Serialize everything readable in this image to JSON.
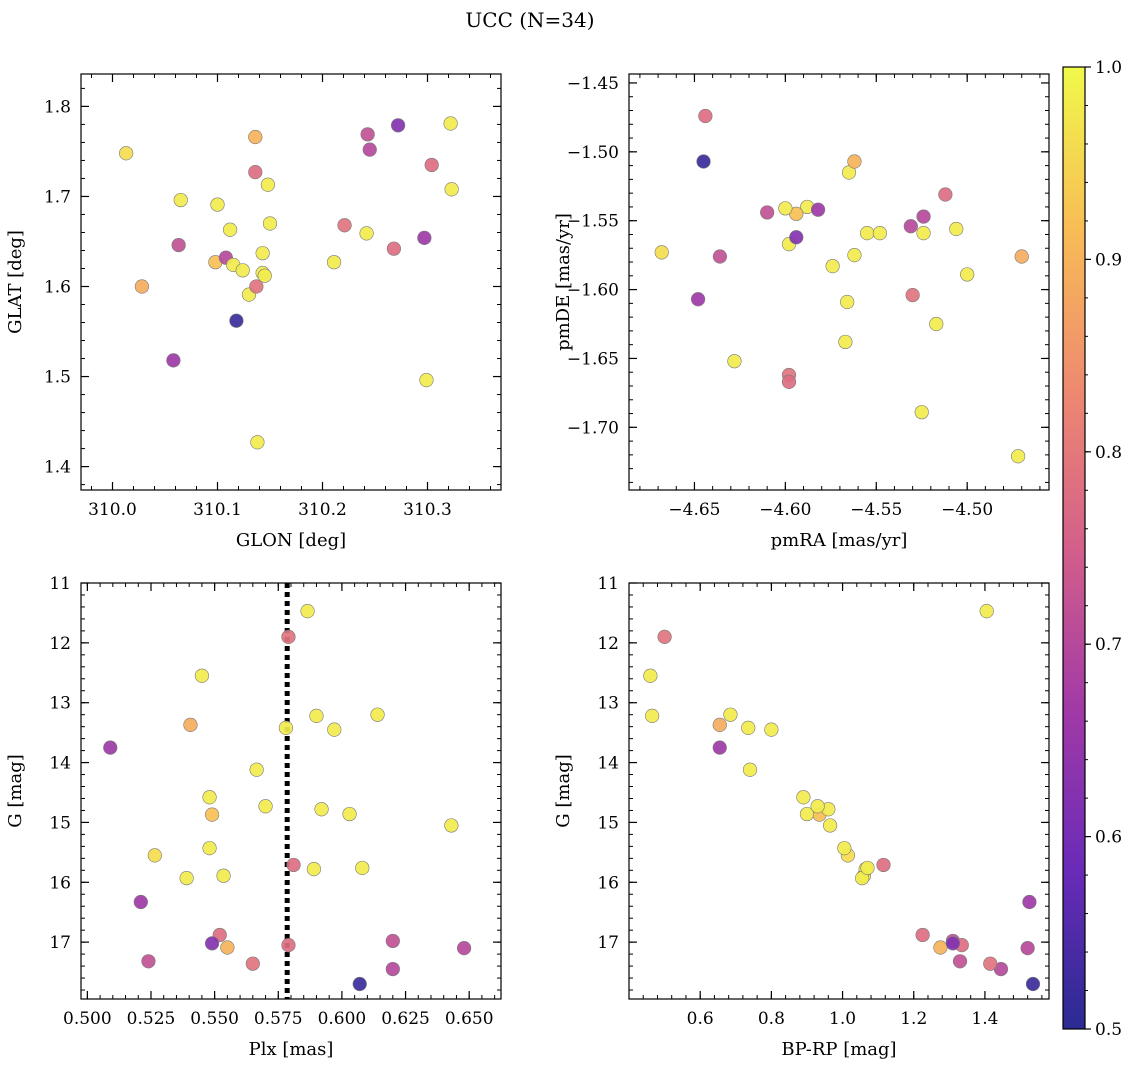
{
  "chart_data": {
    "type": "scatter",
    "title": "UCC (N=34)",
    "colormap": {
      "name": "plasma",
      "range": [
        0.5,
        1.0
      ],
      "ticks": [
        "0.5",
        "0.6",
        "0.7",
        "0.8",
        "0.9",
        "1.0"
      ],
      "stops": [
        "#2a2b92",
        "#6a2bb8",
        "#a23aa6",
        "#d35f8a",
        "#ee8a70",
        "#f8bd55",
        "#f0f94a"
      ]
    },
    "stars": [
      {
        "glon": 310.013,
        "glat": 1.748,
        "pmra": -4.668,
        "pmde": -1.573,
        "plx": 0.5265,
        "g": 15.55,
        "bprp": 1.015,
        "p": 0.96
      },
      {
        "glon": 310.028,
        "glat": 1.6,
        "pmra": -4.47,
        "pmde": -1.576,
        "plx": 0.5405,
        "g": 13.37,
        "bprp": 0.655,
        "p": 0.89
      },
      {
        "glon": 310.058,
        "glat": 1.518,
        "pmra": -4.648,
        "pmde": -1.607,
        "plx": 0.509,
        "g": 13.75,
        "bprp": 0.655,
        "p": 0.66
      },
      {
        "glon": 310.063,
        "glat": 1.646,
        "pmra": -4.61,
        "pmde": -1.544,
        "plx": 0.62,
        "g": 16.98,
        "bprp": 1.31,
        "p": 0.72
      },
      {
        "glon": 310.065,
        "glat": 1.696,
        "pmra": -4.565,
        "pmde": -1.515,
        "plx": 0.548,
        "g": 14.58,
        "bprp": 0.89,
        "p": 0.98
      },
      {
        "glon": 310.1,
        "glat": 1.691,
        "pmra": -4.588,
        "pmde": -1.54,
        "plx": 0.548,
        "g": 15.43,
        "bprp": 1.005,
        "p": 0.98
      },
      {
        "glon": 310.098,
        "glat": 1.627,
        "pmra": -4.594,
        "pmde": -1.545,
        "plx": 0.549,
        "g": 14.87,
        "bprp": 0.935,
        "p": 0.92
      },
      {
        "glon": 310.108,
        "glat": 1.632,
        "pmra": -4.531,
        "pmde": -1.554,
        "plx": 0.62,
        "g": 17.45,
        "bprp": 1.445,
        "p": 0.7
      },
      {
        "glon": 310.112,
        "glat": 1.663,
        "pmra": -4.555,
        "pmde": -1.559,
        "plx": 0.5665,
        "g": 14.12,
        "bprp": 0.74,
        "p": 0.98
      },
      {
        "glon": 310.115,
        "glat": 1.624,
        "pmra": -4.6,
        "pmde": -1.541,
        "plx": 0.5535,
        "g": 15.89,
        "bprp": 1.06,
        "p": 0.98
      },
      {
        "glon": 310.118,
        "glat": 1.562,
        "pmra": -4.645,
        "pmde": -1.507,
        "plx": 0.607,
        "g": 17.7,
        "bprp": 1.535,
        "p": 0.52
      },
      {
        "glon": 310.124,
        "glat": 1.618,
        "pmra": -4.562,
        "pmde": -1.575,
        "plx": 0.592,
        "g": 14.78,
        "bprp": 0.96,
        "p": 0.98
      },
      {
        "glon": 310.13,
        "glat": 1.591,
        "pmra": -4.524,
        "pmde": -1.559,
        "plx": 0.603,
        "g": 14.86,
        "bprp": 0.9,
        "p": 0.98
      },
      {
        "glon": 310.136,
        "glat": 1.766,
        "pmra": -4.562,
        "pmde": -1.507,
        "plx": 0.555,
        "g": 17.09,
        "bprp": 1.275,
        "p": 0.9
      },
      {
        "glon": 310.136,
        "glat": 1.727,
        "pmra": -4.512,
        "pmde": -1.531,
        "plx": 0.552,
        "g": 16.88,
        "bprp": 1.225,
        "p": 0.78
      },
      {
        "glon": 310.137,
        "glat": 1.6,
        "pmra": -4.53,
        "pmde": -1.604,
        "plx": 0.565,
        "g": 17.36,
        "bprp": 1.415,
        "p": 0.79
      },
      {
        "glon": 310.138,
        "glat": 1.427,
        "pmra": -4.598,
        "pmde": -1.567,
        "plx": 0.578,
        "g": 13.42,
        "bprp": 0.735,
        "p": 0.98
      },
      {
        "glon": 310.143,
        "glat": 1.637,
        "pmra": -4.574,
        "pmde": -1.583,
        "plx": 0.589,
        "g": 15.78,
        "bprp": 1.065,
        "p": 0.98
      },
      {
        "glon": 310.143,
        "glat": 1.615,
        "pmra": -4.506,
        "pmde": -1.556,
        "plx": 0.539,
        "g": 15.93,
        "bprp": 1.055,
        "p": 0.98
      },
      {
        "glon": 310.145,
        "glat": 1.612,
        "pmra": -4.566,
        "pmde": -1.609,
        "plx": 0.57,
        "g": 14.73,
        "bprp": 0.93,
        "p": 0.98
      },
      {
        "glon": 310.148,
        "glat": 1.713,
        "pmra": -4.567,
        "pmde": -1.638,
        "plx": 0.597,
        "g": 13.45,
        "bprp": 0.8,
        "p": 0.98
      },
      {
        "glon": 310.15,
        "glat": 1.67,
        "pmra": -4.548,
        "pmde": -1.559,
        "plx": 0.608,
        "g": 15.76,
        "bprp": 1.07,
        "p": 0.98
      },
      {
        "glon": 310.211,
        "glat": 1.627,
        "pmra": -4.517,
        "pmde": -1.625,
        "plx": 0.545,
        "g": 12.55,
        "bprp": 0.46,
        "p": 0.98
      },
      {
        "glon": 310.221,
        "glat": 1.668,
        "pmra": -4.598,
        "pmde": -1.662,
        "plx": 0.579,
        "g": 11.9,
        "bprp": 0.5,
        "p": 0.79
      },
      {
        "glon": 310.242,
        "glat": 1.659,
        "pmra": -4.628,
        "pmde": -1.652,
        "plx": 0.59,
        "g": 13.22,
        "bprp": 0.465,
        "p": 0.98
      },
      {
        "glon": 310.243,
        "glat": 1.769,
        "pmra": -4.636,
        "pmde": -1.576,
        "plx": 0.524,
        "g": 17.32,
        "bprp": 1.33,
        "p": 0.72
      },
      {
        "glon": 310.245,
        "glat": 1.752,
        "pmra": -4.524,
        "pmde": -1.547,
        "plx": 0.648,
        "g": 17.1,
        "bprp": 1.52,
        "p": 0.7
      },
      {
        "glon": 310.268,
        "glat": 1.642,
        "pmra": -4.598,
        "pmde": -1.667,
        "plx": 0.579,
        "g": 17.05,
        "bprp": 1.335,
        "p": 0.78
      },
      {
        "glon": 310.272,
        "glat": 1.779,
        "pmra": -4.594,
        "pmde": -1.562,
        "plx": 0.549,
        "g": 17.02,
        "bprp": 1.31,
        "p": 0.62
      },
      {
        "glon": 310.297,
        "glat": 1.654,
        "pmra": -4.582,
        "pmde": -1.542,
        "plx": 0.521,
        "g": 16.33,
        "bprp": 1.525,
        "p": 0.66
      },
      {
        "glon": 310.299,
        "glat": 1.496,
        "pmra": -4.525,
        "pmde": -1.689,
        "plx": 0.5865,
        "g": 11.47,
        "bprp": 1.405,
        "p": 0.98
      },
      {
        "glon": 310.304,
        "glat": 1.735,
        "pmra": -4.644,
        "pmde": -1.474,
        "plx": 0.581,
        "g": 15.71,
        "bprp": 1.115,
        "p": 0.78
      },
      {
        "glon": 310.322,
        "glat": 1.781,
        "pmra": -4.5,
        "pmde": -1.589,
        "plx": 0.614,
        "g": 13.2,
        "bprp": 0.685,
        "p": 0.98
      },
      {
        "glon": 310.323,
        "glat": 1.708,
        "pmra": -4.472,
        "pmde": -1.721,
        "plx": 0.643,
        "g": 15.05,
        "bprp": 0.965,
        "p": 0.98
      }
    ],
    "panels": [
      {
        "id": "glon-glat",
        "x": "glon",
        "y": "glat",
        "xlabel": "GLON [deg]",
        "ylabel": "GLAT [deg]",
        "xlim": [
          309.97,
          310.37
        ],
        "ylim": [
          1.374,
          1.836
        ],
        "yinvert": false,
        "xticks": [
          310.0,
          310.1,
          310.2,
          310.3
        ],
        "xtick_labels": [
          "310.0",
          "310.1",
          "310.2",
          "310.3"
        ],
        "yticks": [
          1.4,
          1.5,
          1.6,
          1.7,
          1.8
        ],
        "ytick_labels": [
          "1.4",
          "1.5",
          "1.6",
          "1.7",
          "1.8"
        ]
      },
      {
        "id": "pmra-pmde",
        "x": "pmra",
        "y": "pmde",
        "xlabel": "pmRA [mas/yr]",
        "ylabel": "pmDE [mas/yr]",
        "xlim": [
          -4.686,
          -4.455
        ],
        "ylim": [
          -1.7455,
          -1.4435
        ],
        "yinvert": false,
        "xticks": [
          -4.65,
          -4.6,
          -4.55,
          -4.5
        ],
        "xtick_labels": [
          "−4.65",
          "−4.60",
          "−4.55",
          "−4.50"
        ],
        "yticks": [
          -1.7,
          -1.65,
          -1.6,
          -1.55,
          -1.5,
          -1.45
        ],
        "ytick_labels": [
          "−1.70",
          "−1.65",
          "−1.60",
          "−1.55",
          "−1.50",
          "−1.45"
        ]
      },
      {
        "id": "plx-g",
        "x": "plx",
        "y": "g",
        "xlabel": "Plx [mas]",
        "ylabel": "G [mag]",
        "xlim": [
          0.4975,
          0.6625
        ],
        "ylim": [
          11.0,
          17.95
        ],
        "yinvert": true,
        "xticks": [
          0.5,
          0.525,
          0.55,
          0.575,
          0.6,
          0.625,
          0.65
        ],
        "xtick_labels": [
          "0.500",
          "0.525",
          "0.550",
          "0.575",
          "0.600",
          "0.625",
          "0.650"
        ],
        "yticks": [
          11,
          12,
          13,
          14,
          15,
          16,
          17
        ],
        "ytick_labels": [
          "11",
          "12",
          "13",
          "14",
          "15",
          "16",
          "17"
        ],
        "vline": {
          "x": 0.5785,
          "style": "dotted"
        }
      },
      {
        "id": "bprp-g",
        "x": "bprp",
        "y": "g",
        "xlabel": "BP-RP [mag]",
        "ylabel": "G [mag]",
        "xlim": [
          0.4,
          1.58
        ],
        "ylim": [
          11.0,
          17.95
        ],
        "yinvert": true,
        "xticks": [
          0.6,
          0.8,
          1.0,
          1.2,
          1.4
        ],
        "xtick_labels": [
          "0.6",
          "0.8",
          "1.0",
          "1.2",
          "1.4"
        ],
        "yticks": [
          11,
          12,
          13,
          14,
          15,
          16,
          17
        ],
        "ytick_labels": [
          "11",
          "12",
          "13",
          "14",
          "15",
          "16",
          "17"
        ]
      }
    ]
  }
}
